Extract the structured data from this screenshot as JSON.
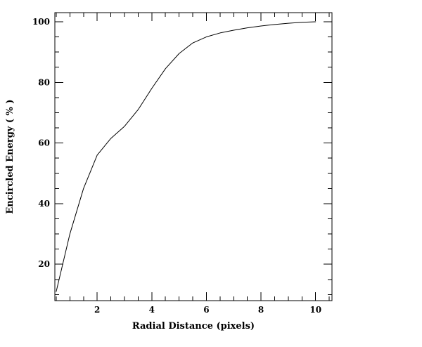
{
  "page": {
    "background": "#ffffff",
    "foreground": "#000000"
  },
  "chart_data": {
    "type": "line",
    "title": "",
    "xlabel": "Radial Distance (pixels)",
    "ylabel": "Encircled Energy ( % )",
    "xlim": [
      0.45,
      10.6
    ],
    "ylim": [
      8,
      103
    ],
    "xticks": [
      2,
      4,
      6,
      8,
      10
    ],
    "yticks": [
      20,
      40,
      60,
      80,
      100
    ],
    "xminor_step": 0.5,
    "yminor_step": 5,
    "grid": false,
    "legend": "none",
    "line_color": "#000000",
    "frame_color": "#000000",
    "series": [
      {
        "name": "encircled-energy-curve",
        "x": [
          0.5,
          1.0,
          1.5,
          2.0,
          2.5,
          3.0,
          3.5,
          4.0,
          4.5,
          5.0,
          5.5,
          6.0,
          6.5,
          7.0,
          7.5,
          8.0,
          8.5,
          9.0,
          9.5,
          10.0
        ],
        "y": [
          11,
          30,
          45,
          56,
          61.5,
          65.5,
          71,
          78,
          84.5,
          89.5,
          93,
          95,
          96.3,
          97.2,
          98,
          98.6,
          99.1,
          99.5,
          99.8,
          100
        ]
      }
    ]
  }
}
